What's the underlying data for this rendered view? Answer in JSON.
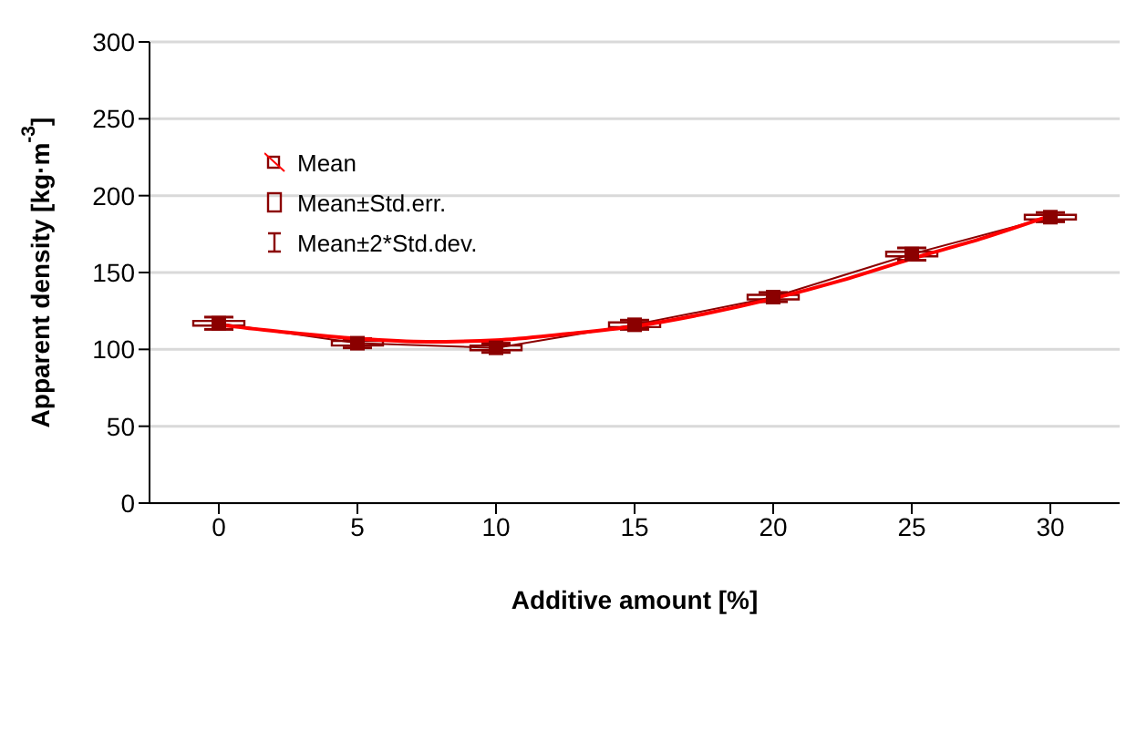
{
  "chart_data": {
    "type": "line",
    "xlabel": "Additive amount [%]",
    "ylabel": "Apparent density [kg·m$^{-3}$]",
    "x": [
      0,
      5,
      10,
      15,
      20,
      25,
      30
    ],
    "xlim": [
      -2.5,
      32.5
    ],
    "xticks": [
      0,
      5,
      10,
      15,
      20,
      25,
      30
    ],
    "ylim": [
      0,
      300
    ],
    "yticks": [
      0,
      50,
      100,
      150,
      200,
      250,
      300
    ],
    "grid": "y",
    "legend": "top left",
    "series": [
      {
        "name": "Mean",
        "color": "#8b0000",
        "marker": "none",
        "values": [
          117,
          104,
          101,
          116,
          134,
          162,
          186
        ]
      },
      {
        "name": "Mean±Std.err.",
        "type": "bar",
        "color": "#8b0000",
        "base": [
          115.5,
          102.5,
          99.5,
          114.5,
          132.5,
          160.5,
          184.5
        ],
        "values": [
          3,
          3,
          3,
          3,
          3,
          3,
          3
        ]
      },
      {
        "name": "Mean±2*Std.dev.",
        "type": "scatter",
        "color": "#8b0000",
        "marker": "square",
        "values": [
          117,
          104,
          101,
          116,
          134,
          162,
          186
        ],
        "errors": [
          4,
          3,
          3,
          3,
          3,
          4,
          3
        ]
      },
      {
        "color": "#ff0000",
        "marker": "none",
        "x": [
          0,
          2.5,
          5,
          7.5,
          10,
          12.5,
          15,
          17.5,
          20,
          22.5,
          25,
          27.5,
          30
        ],
        "values": [
          116,
          111,
          107,
          105,
          106,
          110,
          115,
          123,
          133,
          145,
          159,
          172,
          187
        ]
      }
    ]
  }
}
